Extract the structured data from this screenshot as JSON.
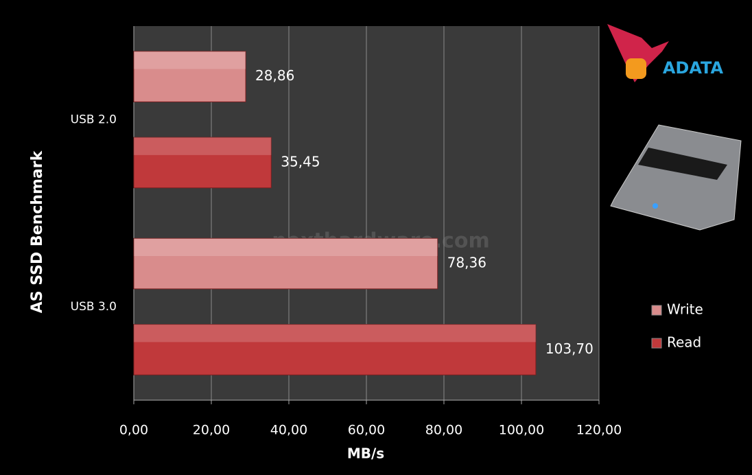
{
  "chart_data": {
    "type": "hbar",
    "y_axis_title": "AS SSD Benchmark",
    "x_axis_title": "MB/s",
    "categories": [
      "USB 2.0",
      "USB 3.0"
    ],
    "series": [
      {
        "name": "Write",
        "color": "#d98c8c",
        "values": [
          28.86,
          78.36
        ],
        "value_labels": [
          "28,86",
          "78,36"
        ]
      },
      {
        "name": "Read",
        "color": "#c0393b",
        "values": [
          35.45,
          103.7
        ],
        "value_labels": [
          "35,45",
          "103,70"
        ]
      }
    ],
    "xlim": [
      0,
      120
    ],
    "xticks": [
      {
        "value": 0,
        "label": "0,00"
      },
      {
        "value": 20,
        "label": "20,00"
      },
      {
        "value": 40,
        "label": "40,00"
      },
      {
        "value": 60,
        "label": "60,00"
      },
      {
        "value": 80,
        "label": "80,00"
      },
      {
        "value": 100,
        "label": "100,00"
      },
      {
        "value": 120,
        "label": "120,00"
      }
    ],
    "grid": true,
    "legend": "right"
  },
  "watermark": "nexthardware.com",
  "logo": "ADATA"
}
